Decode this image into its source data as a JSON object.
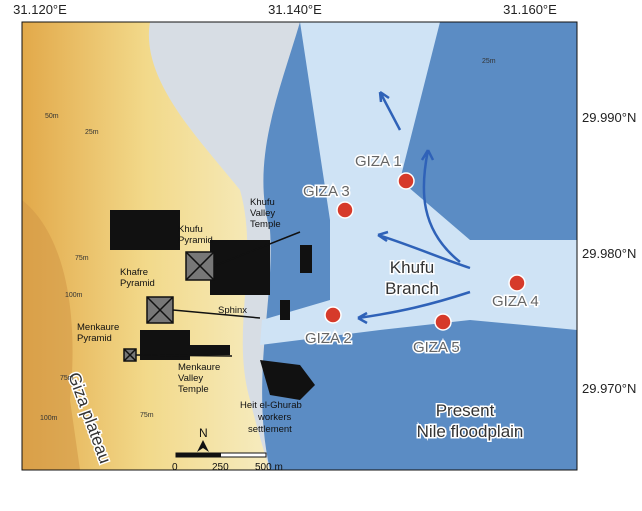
{
  "axes": {
    "top": [
      "31.120°E",
      "31.140°E",
      "31.160°E"
    ],
    "right": [
      "29.990°N",
      "29.980°N",
      "29.970°N"
    ]
  },
  "sites": [
    "GIZA 1",
    "GIZA 2",
    "GIZA 3",
    "GIZA 4",
    "GIZA 5"
  ],
  "features": [
    {
      "lines": [
        "Khufu",
        "Valley",
        "Temple"
      ]
    },
    {
      "lines": [
        "Khufu",
        "Pyramid"
      ]
    },
    {
      "lines": [
        "Khafre",
        "Pyramid"
      ]
    },
    {
      "lines": [
        "Sphinx"
      ]
    },
    {
      "lines": [
        "Menkaure",
        "Pyramid"
      ]
    },
    {
      "lines": [
        "Menkaure",
        "Valley",
        "Temple"
      ]
    },
    {
      "lines": [
        "Heit el-Ghurab",
        "workers",
        "settlement"
      ]
    }
  ],
  "regions": {
    "plateau": "Giza plateau",
    "branch": [
      "Khufu",
      "Branch"
    ],
    "floodplain": [
      "Present",
      "Nile floodplain"
    ]
  },
  "contours": [
    "50m",
    "25m",
    "75m",
    "100m",
    "25m",
    "75m",
    "100m",
    "75m"
  ],
  "scale": {
    "north": "N",
    "ticks": [
      "0",
      "250",
      "500 m"
    ]
  }
}
